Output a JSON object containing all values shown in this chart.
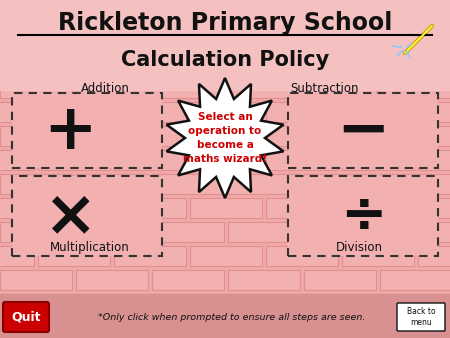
{
  "title_line1": "Rickleton Primary School",
  "title_line2": "Calculation Policy",
  "bg_color": "#f0a8a8",
  "brick_face": "#f2b0b0",
  "mortar_color": "#e09090",
  "title_color": "#111111",
  "addition_symbol": "+",
  "subtraction_symbol": "−",
  "multiplication_symbol": "×",
  "division_symbol": "÷",
  "addition_label": "Addition",
  "subtraction_label": "Subtraction",
  "multiplication_label": "Multiplication",
  "division_label": "Division",
  "starburst_text": "Select an\noperation to\nbecome a\nmaths wizard!",
  "starburst_text_color": "#cc0000",
  "starburst_fill": "#ffffff",
  "starburst_stroke": "#111111",
  "bottom_text": "*Only click when prompted to ensure all steps are seen.",
  "quit_text": "Quit",
  "quit_bg": "#cc0000",
  "quit_text_color": "#ffffff",
  "back_text": "Back to\nmenu",
  "back_bg": "#ffffff",
  "back_stroke": "#111111",
  "title_bg": "#f5c0c0"
}
